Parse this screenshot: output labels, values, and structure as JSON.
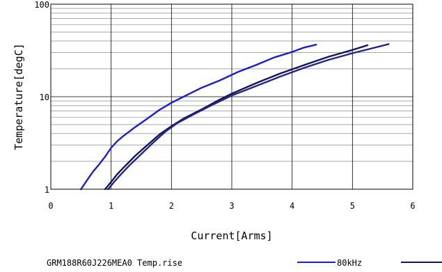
{
  "chart_data": {
    "type": "line",
    "title": "",
    "xlabel": "Current[Arms]",
    "ylabel": "Temperature[degC]",
    "xlim": [
      0,
      6
    ],
    "ylim": [
      1,
      100
    ],
    "y_scale": "log",
    "grid": true,
    "x_ticks": [
      0,
      1,
      2,
      3,
      4,
      5,
      6
    ],
    "x_tick_labels": [
      "0",
      "1",
      "2",
      "3",
      "4",
      "5",
      "6"
    ],
    "y_ticks": [
      1,
      10,
      100
    ],
    "y_tick_labels": [
      "1",
      "10",
      "100"
    ],
    "legend": {
      "title": "GRM188R60J226MEA0 Temp.rise",
      "placement": "bottom"
    },
    "series": [
      {
        "name": "80kHz",
        "color": "#1c1ccc",
        "points": [
          [
            0.5,
            1.0
          ],
          [
            0.6,
            1.25
          ],
          [
            0.7,
            1.55
          ],
          [
            0.8,
            1.85
          ],
          [
            0.9,
            2.25
          ],
          [
            1.0,
            2.8
          ],
          [
            1.1,
            3.3
          ],
          [
            1.2,
            3.75
          ],
          [
            1.4,
            4.7
          ],
          [
            1.6,
            5.8
          ],
          [
            1.8,
            7.2
          ],
          [
            2.0,
            8.6
          ],
          [
            2.2,
            10.0
          ],
          [
            2.5,
            12.5
          ],
          [
            2.8,
            15.0
          ],
          [
            3.1,
            18.5
          ],
          [
            3.4,
            22.0
          ],
          [
            3.7,
            26.5
          ],
          [
            4.0,
            30.5
          ],
          [
            4.2,
            34.0
          ],
          [
            4.4,
            36.5
          ]
        ]
      },
      {
        "name": "",
        "color": "#141452",
        "points": [
          [
            0.9,
            1.0
          ],
          [
            1.0,
            1.2
          ],
          [
            1.1,
            1.45
          ],
          [
            1.2,
            1.7
          ],
          [
            1.4,
            2.3
          ],
          [
            1.6,
            3.0
          ],
          [
            1.8,
            3.9
          ],
          [
            2.0,
            4.8
          ],
          [
            2.2,
            5.8
          ],
          [
            2.5,
            7.3
          ],
          [
            2.8,
            9.3
          ],
          [
            3.0,
            10.8
          ],
          [
            3.4,
            14.0
          ],
          [
            3.8,
            17.8
          ],
          [
            4.2,
            22.0
          ],
          [
            4.6,
            27.0
          ],
          [
            5.0,
            32.0
          ],
          [
            5.25,
            36.0
          ]
        ]
      },
      {
        "name": "",
        "color": "#23238e",
        "points": [
          [
            0.95,
            1.0
          ],
          [
            1.05,
            1.2
          ],
          [
            1.15,
            1.42
          ],
          [
            1.3,
            1.8
          ],
          [
            1.5,
            2.4
          ],
          [
            1.7,
            3.2
          ],
          [
            1.9,
            4.2
          ],
          [
            2.1,
            5.2
          ],
          [
            2.4,
            6.6
          ],
          [
            2.7,
            8.3
          ],
          [
            3.0,
            10.3
          ],
          [
            3.4,
            13.0
          ],
          [
            3.8,
            16.5
          ],
          [
            4.2,
            20.5
          ],
          [
            4.6,
            25.0
          ],
          [
            5.0,
            29.5
          ],
          [
            5.3,
            33.0
          ],
          [
            5.6,
            37.0
          ]
        ]
      }
    ]
  }
}
